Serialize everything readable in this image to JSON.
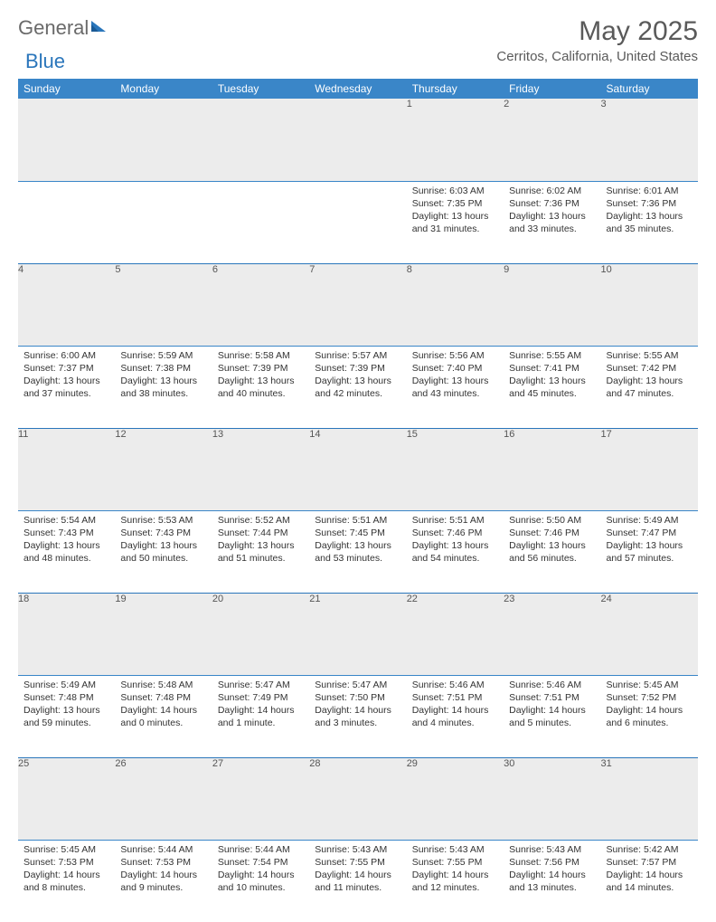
{
  "logo": {
    "text1": "General",
    "text2": "Blue"
  },
  "title": "May 2025",
  "location": "Cerritos, California, United States",
  "headers": [
    "Sunday",
    "Monday",
    "Tuesday",
    "Wednesday",
    "Thursday",
    "Friday",
    "Saturday"
  ],
  "colors": {
    "header_bg": "#3a86c8",
    "header_text": "#ffffff",
    "daynum_bg": "#ececec",
    "border": "#2a76bb",
    "logo_gray": "#6a6a6a",
    "logo_blue": "#2a76bb",
    "title_gray": "#5a5a5a"
  },
  "weeks": [
    [
      null,
      null,
      null,
      null,
      {
        "num": "1",
        "sunrise": "6:03 AM",
        "sunset": "7:35 PM",
        "daylight": "13 hours and 31 minutes."
      },
      {
        "num": "2",
        "sunrise": "6:02 AM",
        "sunset": "7:36 PM",
        "daylight": "13 hours and 33 minutes."
      },
      {
        "num": "3",
        "sunrise": "6:01 AM",
        "sunset": "7:36 PM",
        "daylight": "13 hours and 35 minutes."
      }
    ],
    [
      {
        "num": "4",
        "sunrise": "6:00 AM",
        "sunset": "7:37 PM",
        "daylight": "13 hours and 37 minutes."
      },
      {
        "num": "5",
        "sunrise": "5:59 AM",
        "sunset": "7:38 PM",
        "daylight": "13 hours and 38 minutes."
      },
      {
        "num": "6",
        "sunrise": "5:58 AM",
        "sunset": "7:39 PM",
        "daylight": "13 hours and 40 minutes."
      },
      {
        "num": "7",
        "sunrise": "5:57 AM",
        "sunset": "7:39 PM",
        "daylight": "13 hours and 42 minutes."
      },
      {
        "num": "8",
        "sunrise": "5:56 AM",
        "sunset": "7:40 PM",
        "daylight": "13 hours and 43 minutes."
      },
      {
        "num": "9",
        "sunrise": "5:55 AM",
        "sunset": "7:41 PM",
        "daylight": "13 hours and 45 minutes."
      },
      {
        "num": "10",
        "sunrise": "5:55 AM",
        "sunset": "7:42 PM",
        "daylight": "13 hours and 47 minutes."
      }
    ],
    [
      {
        "num": "11",
        "sunrise": "5:54 AM",
        "sunset": "7:43 PM",
        "daylight": "13 hours and 48 minutes."
      },
      {
        "num": "12",
        "sunrise": "5:53 AM",
        "sunset": "7:43 PM",
        "daylight": "13 hours and 50 minutes."
      },
      {
        "num": "13",
        "sunrise": "5:52 AM",
        "sunset": "7:44 PM",
        "daylight": "13 hours and 51 minutes."
      },
      {
        "num": "14",
        "sunrise": "5:51 AM",
        "sunset": "7:45 PM",
        "daylight": "13 hours and 53 minutes."
      },
      {
        "num": "15",
        "sunrise": "5:51 AM",
        "sunset": "7:46 PM",
        "daylight": "13 hours and 54 minutes."
      },
      {
        "num": "16",
        "sunrise": "5:50 AM",
        "sunset": "7:46 PM",
        "daylight": "13 hours and 56 minutes."
      },
      {
        "num": "17",
        "sunrise": "5:49 AM",
        "sunset": "7:47 PM",
        "daylight": "13 hours and 57 minutes."
      }
    ],
    [
      {
        "num": "18",
        "sunrise": "5:49 AM",
        "sunset": "7:48 PM",
        "daylight": "13 hours and 59 minutes."
      },
      {
        "num": "19",
        "sunrise": "5:48 AM",
        "sunset": "7:48 PM",
        "daylight": "14 hours and 0 minutes."
      },
      {
        "num": "20",
        "sunrise": "5:47 AM",
        "sunset": "7:49 PM",
        "daylight": "14 hours and 1 minute."
      },
      {
        "num": "21",
        "sunrise": "5:47 AM",
        "sunset": "7:50 PM",
        "daylight": "14 hours and 3 minutes."
      },
      {
        "num": "22",
        "sunrise": "5:46 AM",
        "sunset": "7:51 PM",
        "daylight": "14 hours and 4 minutes."
      },
      {
        "num": "23",
        "sunrise": "5:46 AM",
        "sunset": "7:51 PM",
        "daylight": "14 hours and 5 minutes."
      },
      {
        "num": "24",
        "sunrise": "5:45 AM",
        "sunset": "7:52 PM",
        "daylight": "14 hours and 6 minutes."
      }
    ],
    [
      {
        "num": "25",
        "sunrise": "5:45 AM",
        "sunset": "7:53 PM",
        "daylight": "14 hours and 8 minutes."
      },
      {
        "num": "26",
        "sunrise": "5:44 AM",
        "sunset": "7:53 PM",
        "daylight": "14 hours and 9 minutes."
      },
      {
        "num": "27",
        "sunrise": "5:44 AM",
        "sunset": "7:54 PM",
        "daylight": "14 hours and 10 minutes."
      },
      {
        "num": "28",
        "sunrise": "5:43 AM",
        "sunset": "7:55 PM",
        "daylight": "14 hours and 11 minutes."
      },
      {
        "num": "29",
        "sunrise": "5:43 AM",
        "sunset": "7:55 PM",
        "daylight": "14 hours and 12 minutes."
      },
      {
        "num": "30",
        "sunrise": "5:43 AM",
        "sunset": "7:56 PM",
        "daylight": "14 hours and 13 minutes."
      },
      {
        "num": "31",
        "sunrise": "5:42 AM",
        "sunset": "7:57 PM",
        "daylight": "14 hours and 14 minutes."
      }
    ]
  ],
  "labels": {
    "sunrise": "Sunrise: ",
    "sunset": "Sunset: ",
    "daylight": "Daylight: "
  }
}
